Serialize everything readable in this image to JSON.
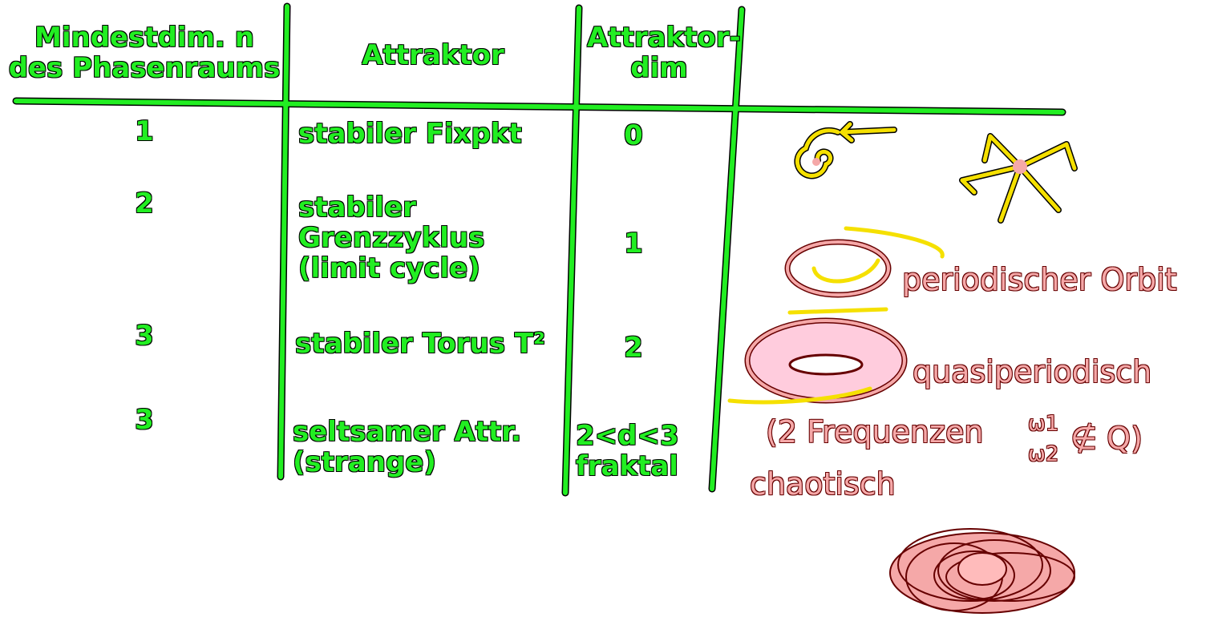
{
  "table": {
    "header": [
      "Mindestdim. n des Phasenraums",
      "Attraktor",
      "Attraktor-dim"
    ],
    "rows": [
      [
        "1",
        "stabiler Fixpkt",
        "0"
      ],
      [
        "2",
        "stabiler Grenzzyklus (limit cycle)",
        "1"
      ],
      [
        "3",
        "stabiler Torus T²",
        "2"
      ],
      [
        "3",
        "seltsamer Attr. (strange)",
        "2<d<3 fraktal"
      ]
    ],
    "notes": [
      "periodischer Orbit",
      "quasiperiodisch",
      "(2 Frequenzen",
      "ω1",
      "ω2",
      "∉ Q)",
      "chaotisch"
    ]
  }
}
